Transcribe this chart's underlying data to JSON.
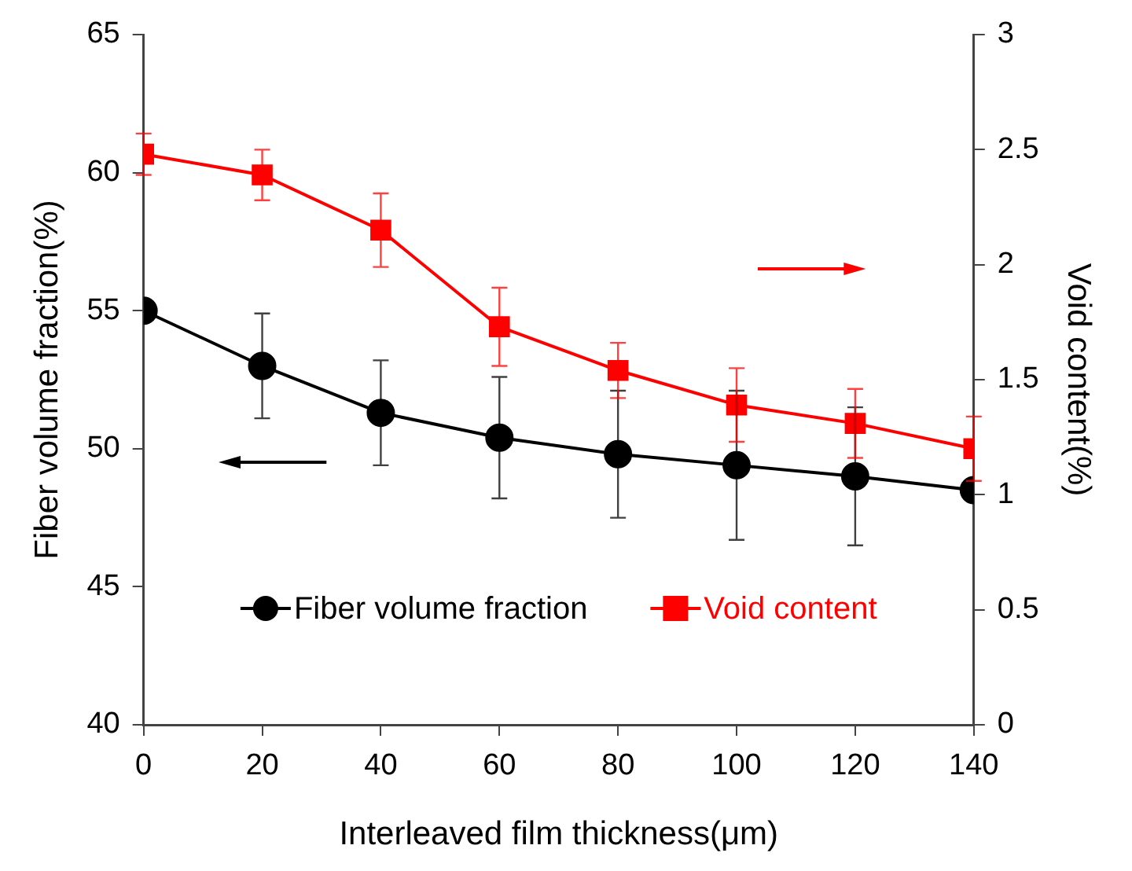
{
  "chart_data": {
    "type": "line",
    "xlabel": "Interleaved film thickness(μm)",
    "ylabel": "Fiber volume fraction(%)",
    "y2label": "Void content(%)",
    "x": [
      0,
      20,
      40,
      60,
      80,
      100,
      120,
      140
    ],
    "xlim": [
      0,
      140
    ],
    "xticks": [
      0,
      20,
      40,
      60,
      80,
      100,
      120,
      140
    ],
    "ylim": [
      40,
      65
    ],
    "yticks": [
      40,
      45,
      50,
      55,
      60,
      65
    ],
    "y2lim": [
      0,
      3
    ],
    "y2ticks": [
      0,
      0.5,
      1,
      1.5,
      2,
      2.5,
      3
    ],
    "series": [
      {
        "name": "Fiber volume fraction",
        "color": "#000000",
        "marker": "circle",
        "values": [
          55.0,
          53.0,
          51.3,
          50.4,
          49.8,
          49.4,
          49.0,
          48.5
        ],
        "errors": [
          null,
          1.9,
          1.9,
          2.2,
          2.3,
          2.7,
          2.5,
          null
        ]
      },
      {
        "name": "Void content",
        "color": "#ff0000",
        "marker": "square",
        "axis": "y2",
        "values": [
          2.48,
          2.39,
          2.15,
          1.73,
          1.54,
          1.39,
          1.31,
          1.2
        ],
        "errors": [
          0.09,
          0.11,
          0.16,
          0.17,
          0.12,
          0.16,
          0.15,
          0.14
        ]
      }
    ],
    "grid": false,
    "legend": "bottom",
    "line_style": "solid"
  }
}
